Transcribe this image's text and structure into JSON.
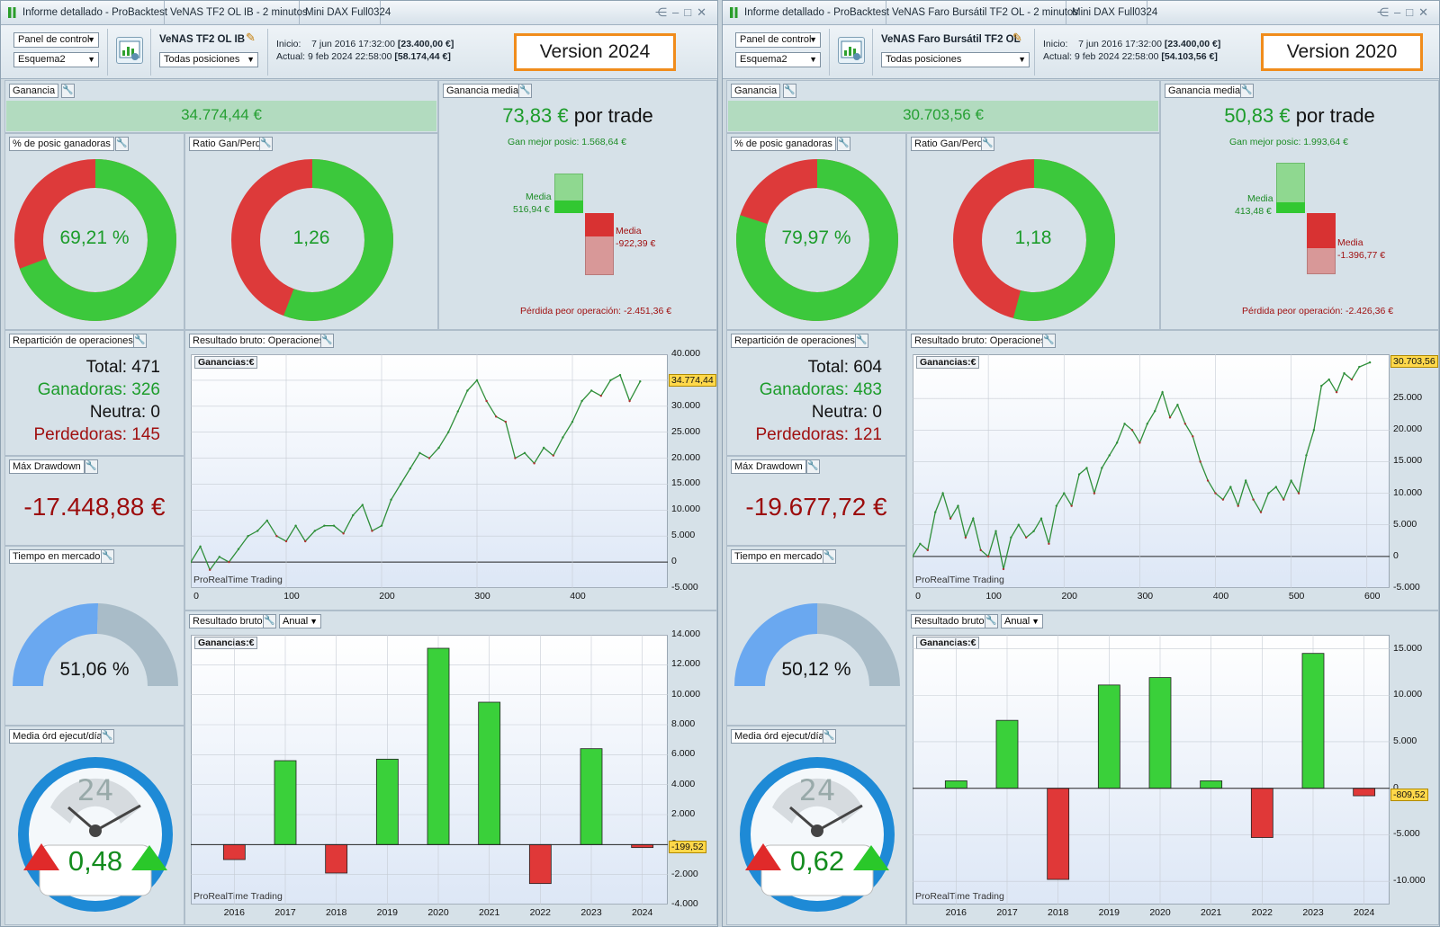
{
  "windows": [
    {
      "title_tabs": [
        "Informe detallado - ProBacktest",
        "VeNAS TF2 OL IB - 2 minutos",
        "Mini DAX Full0324"
      ],
      "toolbar": {
        "panel_select": "Panel de control",
        "scheme_select": "Esquema2",
        "strategy_name": "VeNAS TF2 OL IB",
        "positions_select": "Todas posiciones",
        "inicio_label": "Inicio:",
        "inicio_date": "7 jun 2016 17:32:00",
        "inicio_value": "[23.400,00 €]",
        "actual_label": "Actual:",
        "actual_date": "9 feb 2024 22:58:00",
        "actual_value": "[58.174,44 €]",
        "version_label": "Version 2024"
      },
      "ganancia": {
        "label": "Ganancia",
        "value": "34.774,44 €"
      },
      "ganancia_media": {
        "label": "Ganancia media",
        "value": "73,83 €",
        "suffix": "por trade",
        "best_label": "Gan mejor posic: 1.568,64 €",
        "media_pos_label": "Media",
        "media_pos_value": "516,94 €",
        "media_neg_label": "Media",
        "media_neg_value": "-922,39 €",
        "worst_label": "Pérdida peor operación: -2.451,36 €",
        "best_raw": 1568.64,
        "media_pos_raw": 516.94,
        "media_neg_raw": 922.39,
        "worst_raw": 2451.36
      },
      "pct_ganadoras": {
        "label": "% de posic ganadoras",
        "value": "69,21 %",
        "fraction": 0.6921
      },
      "ratio": {
        "label": "Ratio Gan/Perd",
        "value": "1,26",
        "fraction": 0.5575
      },
      "reparticion": {
        "label": "Repartición de operaciones",
        "total": "Total: 471",
        "ganadoras": "Ganadoras: 326",
        "neutra": "Neutra: 0",
        "perdedoras": "Perdedoras: 145"
      },
      "drawdown": {
        "label": "Máx Drawdown",
        "value": "-17.448,88 €"
      },
      "tiempo": {
        "label": "Tiempo en mercado",
        "value": "51,06 %",
        "fraction": 0.5106
      },
      "media_ord": {
        "label": "Media órd ejecut/día",
        "value": "0,48",
        "dial_number": "24"
      },
      "resultado_ops": {
        "label": "Resultado bruto: Operaciones",
        "chart_label": "Ganancias:€",
        "watermark": "ProRealTime Trading",
        "last_value": "34.774,44",
        "y_ticks": [
          "40.000",
          "35.000",
          "30.000",
          "25.000",
          "20.000",
          "15.000",
          "10.000",
          "5.000",
          "0",
          "-5.000"
        ],
        "x_ticks": [
          "0",
          "100",
          "200",
          "300",
          "400"
        ]
      },
      "resultado_anual": {
        "label": "Resultado bruto",
        "period_select": "Anual",
        "chart_label": "Ganancias:€",
        "watermark": "ProRealTime Trading",
        "last_value": "-199,52",
        "y_ticks": [
          "14.000",
          "12.000",
          "10.000",
          "8.000",
          "6.000",
          "4.000",
          "2.000",
          "0",
          "-2.000",
          "-4.000"
        ]
      }
    },
    {
      "title_tabs": [
        "Informe detallado - ProBacktest",
        "VeNAS Faro Bursátil TF2 OL - 2 minutos",
        "Mini DAX Full0324"
      ],
      "toolbar": {
        "panel_select": "Panel de control",
        "scheme_select": "Esquema2",
        "strategy_name": "VeNAS Faro Bursátil TF2 OL",
        "positions_select": "Todas posiciones",
        "inicio_label": "Inicio:",
        "inicio_date": "7 jun 2016 17:32:00",
        "inicio_value": "[23.400,00 €]",
        "actual_label": "Actual:",
        "actual_date": "9 feb 2024 22:58:00",
        "actual_value": "[54.103,56 €]",
        "version_label": "Version 2020"
      },
      "ganancia": {
        "label": "Ganancia",
        "value": "30.703,56 €"
      },
      "ganancia_media": {
        "label": "Ganancia media",
        "value": "50,83 €",
        "suffix": "por trade",
        "best_label": "Gan mejor posic: 1.993,64 €",
        "media_pos_label": "Media",
        "media_pos_value": "413,48 €",
        "media_neg_label": "Media",
        "media_neg_value": "-1.396,77 €",
        "worst_label": "Pérdida peor operación: -2.426,36 €",
        "best_raw": 1993.64,
        "media_pos_raw": 413.48,
        "media_neg_raw": 1396.77,
        "worst_raw": 2426.36
      },
      "pct_ganadoras": {
        "label": "% de posic ganadoras",
        "value": "79,97 %",
        "fraction": 0.7997
      },
      "ratio": {
        "label": "Ratio Gan/Perd",
        "value": "1,18",
        "fraction": 0.5413
      },
      "reparticion": {
        "label": "Repartición de operaciones",
        "total": "Total: 604",
        "ganadoras": "Ganadoras: 483",
        "neutra": "Neutra: 0",
        "perdedoras": "Perdedoras: 121"
      },
      "drawdown": {
        "label": "Máx Drawdown",
        "value": "-19.677,72 €"
      },
      "tiempo": {
        "label": "Tiempo en mercado",
        "value": "50,12 %",
        "fraction": 0.5012
      },
      "media_ord": {
        "label": "Media órd ejecut/día",
        "value": "0,62",
        "dial_number": "24"
      },
      "resultado_ops": {
        "label": "Resultado bruto: Operaciones",
        "chart_label": "Ganancias:€",
        "watermark": "ProRealTime Trading",
        "last_value": "30.703,56",
        "y_ticks": [
          "25.000",
          "20.000",
          "15.000",
          "10.000",
          "5.000",
          "0",
          "-5.000"
        ],
        "x_ticks": [
          "0",
          "100",
          "200",
          "300",
          "400",
          "500",
          "600"
        ]
      },
      "resultado_anual": {
        "label": "Resultado bruto",
        "period_select": "Anual",
        "chart_label": "Ganancias:€",
        "watermark": "ProRealTime Trading",
        "last_value": "-809,52",
        "y_ticks": [
          "15.000",
          "10.000",
          "5.000",
          "0",
          "-5.000",
          "-10.000"
        ]
      }
    }
  ],
  "colors": {
    "green": "#3cc83c",
    "red": "#dd3a3a",
    "blue": "#6aa8f0",
    "gray": "#a9bcc8",
    "orange": "#f08c1c"
  },
  "chart_data": [
    {
      "type": "line",
      "title": "Resultado bruto: Operaciones",
      "ylabel": "Ganancias:€",
      "xlim": [
        0,
        500
      ],
      "ylim": [
        -5000,
        40000
      ],
      "x": [
        0,
        10,
        20,
        30,
        40,
        50,
        60,
        70,
        80,
        90,
        100,
        110,
        120,
        130,
        140,
        150,
        160,
        170,
        180,
        190,
        200,
        210,
        220,
        230,
        240,
        250,
        260,
        270,
        280,
        290,
        300,
        310,
        320,
        330,
        340,
        350,
        360,
        370,
        380,
        390,
        400,
        410,
        420,
        430,
        440,
        450,
        460,
        471
      ],
      "series": [
        {
          "values": [
            0,
            3000,
            -1500,
            1000,
            0,
            2500,
            5000,
            6000,
            8000,
            5000,
            4000,
            7000,
            4000,
            6000,
            7000,
            7000,
            5500,
            9000,
            11000,
            6000,
            7000,
            12000,
            15000,
            18000,
            21000,
            20000,
            22000,
            25000,
            29000,
            33000,
            35000,
            31000,
            28000,
            27000,
            20000,
            21000,
            19000,
            22000,
            20500,
            24000,
            27000,
            31000,
            33000,
            32000,
            35000,
            36000,
            31000,
            34774
          ]
        }
      ],
      "x_ticks": [
        0,
        100,
        200,
        300,
        400
      ]
    },
    {
      "type": "bar",
      "title": "Resultado bruto",
      "ylabel": "Ganancias:€",
      "categories": [
        "2016",
        "2017",
        "2018",
        "2019",
        "2020",
        "2021",
        "2022",
        "2023",
        "2024"
      ],
      "values": [
        -1000,
        5600,
        -1900,
        5700,
        13100,
        9500,
        -2600,
        6400,
        -199.52
      ],
      "ylim": [
        -4000,
        14000
      ]
    },
    {
      "type": "line",
      "title": "Resultado bruto: Operaciones",
      "ylabel": "Ganancias:€",
      "xlim": [
        0,
        630
      ],
      "ylim": [
        -5000,
        32000
      ],
      "x": [
        0,
        10,
        20,
        30,
        40,
        50,
        60,
        70,
        80,
        90,
        100,
        110,
        120,
        130,
        140,
        150,
        160,
        170,
        180,
        190,
        200,
        210,
        220,
        230,
        240,
        250,
        260,
        270,
        280,
        290,
        300,
        310,
        320,
        330,
        340,
        350,
        360,
        370,
        380,
        390,
        400,
        410,
        420,
        430,
        440,
        450,
        460,
        470,
        480,
        490,
        500,
        510,
        520,
        530,
        540,
        550,
        560,
        570,
        580,
        590,
        604
      ],
      "series": [
        {
          "values": [
            0,
            2000,
            1000,
            7000,
            10000,
            6000,
            8000,
            3000,
            6000,
            1000,
            0,
            4000,
            -2000,
            3000,
            5000,
            3000,
            4000,
            6000,
            2000,
            8000,
            10000,
            8000,
            13000,
            14000,
            10000,
            14000,
            16000,
            18000,
            21000,
            20000,
            18000,
            21000,
            23000,
            26000,
            22000,
            24000,
            21000,
            19000,
            15000,
            12000,
            10000,
            9000,
            11000,
            8000,
            12000,
            9000,
            7000,
            10000,
            11000,
            9000,
            12000,
            10000,
            16000,
            20000,
            27000,
            28000,
            26000,
            29000,
            28000,
            30000,
            30703
          ]
        }
      ],
      "x_ticks": [
        0,
        100,
        200,
        300,
        400,
        500,
        600
      ]
    },
    {
      "type": "bar",
      "title": "Resultado bruto",
      "ylabel": "Ganancias:€",
      "categories": [
        "2016",
        "2017",
        "2018",
        "2019",
        "2020",
        "2021",
        "2022",
        "2023",
        "2024"
      ],
      "values": [
        800,
        7300,
        -9800,
        11100,
        11900,
        800,
        -5300,
        14500,
        -809.52
      ],
      "ylim": [
        -12500,
        16500
      ]
    }
  ]
}
